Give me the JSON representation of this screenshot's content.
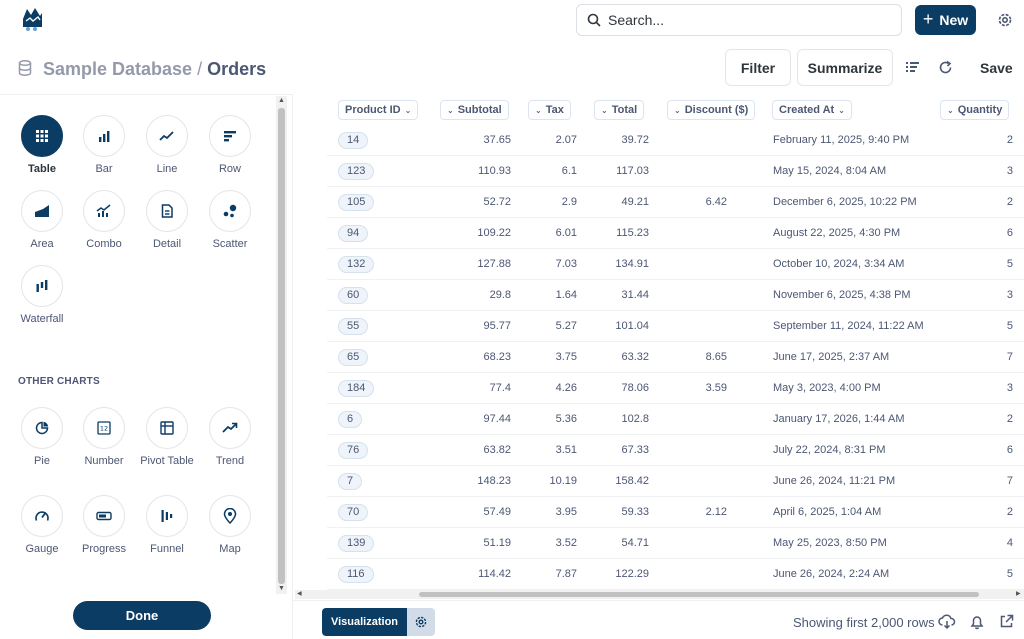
{
  "app": {
    "logo_icon": "metabase-logo-icon"
  },
  "search": {
    "placeholder": "Search..."
  },
  "topbar": {
    "new_label": "New",
    "accent": "#0b3c64"
  },
  "breadcrumb": {
    "database": "Sample Database",
    "separator": "/",
    "table": "Orders"
  },
  "header_actions": {
    "filter": "Filter",
    "summarize": "Summarize",
    "save": "Save"
  },
  "visualizations": {
    "primary": [
      {
        "label": "Table",
        "icon": "table-icon",
        "active": true
      },
      {
        "label": "Bar",
        "icon": "bar-chart-icon"
      },
      {
        "label": "Line",
        "icon": "line-chart-icon"
      },
      {
        "label": "Row",
        "icon": "row-chart-icon"
      },
      {
        "label": "Area",
        "icon": "area-chart-icon"
      },
      {
        "label": "Combo",
        "icon": "combo-chart-icon"
      },
      {
        "label": "Detail",
        "icon": "detail-icon"
      },
      {
        "label": "Scatter",
        "icon": "scatter-icon"
      },
      {
        "label": "Waterfall",
        "icon": "waterfall-icon"
      }
    ],
    "other_title": "OTHER CHARTS",
    "other": [
      {
        "label": "Pie",
        "icon": "pie-chart-icon"
      },
      {
        "label": "Number",
        "icon": "number-icon"
      },
      {
        "label": "Pivot Table",
        "icon": "pivot-table-icon"
      },
      {
        "label": "Trend",
        "icon": "trend-icon"
      },
      {
        "label": "Gauge",
        "icon": "gauge-icon"
      },
      {
        "label": "Progress",
        "icon": "progress-icon"
      },
      {
        "label": "Funnel",
        "icon": "funnel-icon"
      },
      {
        "label": "Map",
        "icon": "map-pin-icon"
      }
    ],
    "done_label": "Done"
  },
  "table": {
    "columns": [
      "Product ID",
      "Subtotal",
      "Tax",
      "Total",
      "Discount ($)",
      "Created At",
      "Quantity"
    ],
    "rows": [
      [
        "14",
        "37.65",
        "2.07",
        "39.72",
        "",
        "February 11, 2025, 9:40 PM",
        "2"
      ],
      [
        "123",
        "110.93",
        "6.1",
        "117.03",
        "",
        "May 15, 2024, 8:04 AM",
        "3"
      ],
      [
        "105",
        "52.72",
        "2.9",
        "49.21",
        "6.42",
        "December 6, 2025, 10:22 PM",
        "2"
      ],
      [
        "94",
        "109.22",
        "6.01",
        "115.23",
        "",
        "August 22, 2025, 4:30 PM",
        "6"
      ],
      [
        "132",
        "127.88",
        "7.03",
        "134.91",
        "",
        "October 10, 2024, 3:34 AM",
        "5"
      ],
      [
        "60",
        "29.8",
        "1.64",
        "31.44",
        "",
        "November 6, 2025, 4:38 PM",
        "3"
      ],
      [
        "55",
        "95.77",
        "5.27",
        "101.04",
        "",
        "September 11, 2024, 11:22 AM",
        "5"
      ],
      [
        "65",
        "68.23",
        "3.75",
        "63.32",
        "8.65",
        "June 17, 2025, 2:37 AM",
        "7"
      ],
      [
        "184",
        "77.4",
        "4.26",
        "78.06",
        "3.59",
        "May 3, 2023, 4:00 PM",
        "3"
      ],
      [
        "6",
        "97.44",
        "5.36",
        "102.8",
        "",
        "January 17, 2026, 1:44 AM",
        "2"
      ],
      [
        "76",
        "63.82",
        "3.51",
        "67.33",
        "",
        "July 22, 2024, 8:31 PM",
        "6"
      ],
      [
        "7",
        "148.23",
        "10.19",
        "158.42",
        "",
        "June 26, 2024, 11:21 PM",
        "7"
      ],
      [
        "70",
        "57.49",
        "3.95",
        "59.33",
        "2.12",
        "April 6, 2025, 1:04 AM",
        "2"
      ],
      [
        "139",
        "51.19",
        "3.52",
        "54.71",
        "",
        "May 25, 2023, 8:50 PM",
        "4"
      ],
      [
        "116",
        "114.42",
        "7.87",
        "122.29",
        "",
        "June 26, 2024, 2:24 AM",
        "5"
      ]
    ]
  },
  "footer": {
    "visualization_label": "Visualization",
    "row_count": "Showing first 2,000 rows"
  }
}
